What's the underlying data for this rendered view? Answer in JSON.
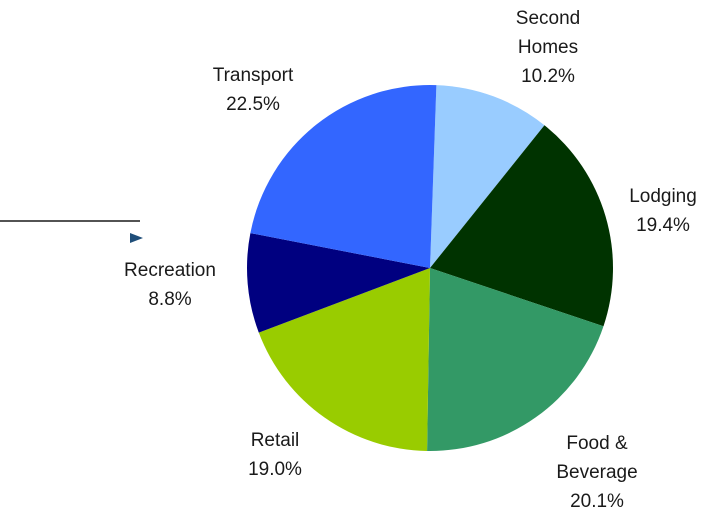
{
  "chart_data": {
    "type": "pie",
    "categories": [
      "Second Homes",
      "Lodging",
      "Food & Beverage",
      "Retail",
      "Recreation",
      "Transport"
    ],
    "values": [
      10.2,
      19.4,
      20.1,
      19.0,
      8.8,
      22.5
    ],
    "value_labels": [
      "10.2%",
      "19.4%",
      "20.1%",
      "19.0%",
      "8.8%",
      "22.5%"
    ],
    "colors": [
      "#99ccff",
      "#003300",
      "#339966",
      "#99cc00",
      "#000080",
      "#3366ff"
    ]
  }
}
